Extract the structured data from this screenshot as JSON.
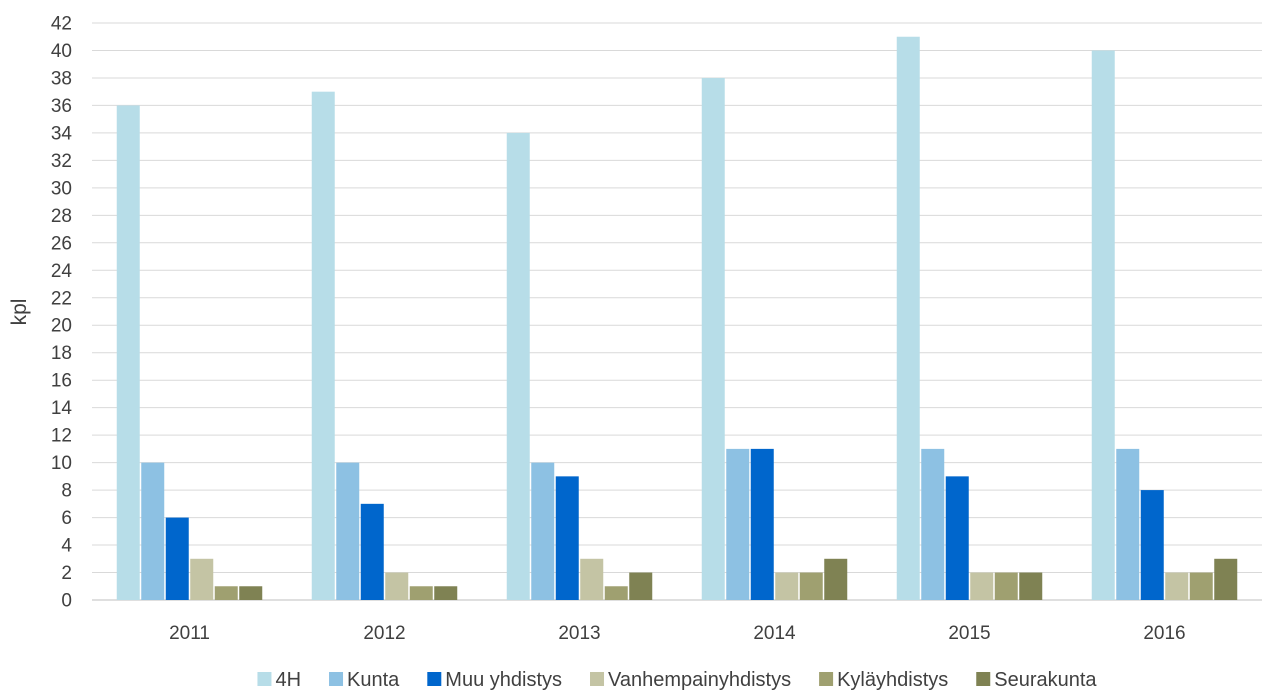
{
  "chart_data": {
    "type": "bar",
    "title": "",
    "xlabel": "",
    "ylabel": "kpl",
    "ylim": [
      0,
      42
    ],
    "ytick_step": 2,
    "grid": "horizontal",
    "legend_position": "bottom",
    "categories": [
      "2011",
      "2012",
      "2013",
      "2014",
      "2015",
      "2016"
    ],
    "series": [
      {
        "name": "4H",
        "color": "#b7dde8",
        "values": [
          36,
          37,
          34,
          38,
          41,
          40
        ]
      },
      {
        "name": "Kunta",
        "color": "#8dc1e3",
        "values": [
          10,
          10,
          10,
          11,
          11,
          11
        ]
      },
      {
        "name": "Muu yhdistys",
        "color": "#0066cc",
        "values": [
          6,
          7,
          9,
          11,
          9,
          8
        ]
      },
      {
        "name": "Vanhempainyhdistys",
        "color": "#c4c4a4",
        "values": [
          3,
          2,
          3,
          2,
          2,
          2
        ]
      },
      {
        "name": "Kyläyhdistys",
        "color": "#9fa070",
        "values": [
          1,
          1,
          1,
          2,
          2,
          2
        ]
      },
      {
        "name": "Seurakunta",
        "color": "#7f8253",
        "values": [
          1,
          1,
          2,
          3,
          2,
          3
        ]
      }
    ]
  }
}
